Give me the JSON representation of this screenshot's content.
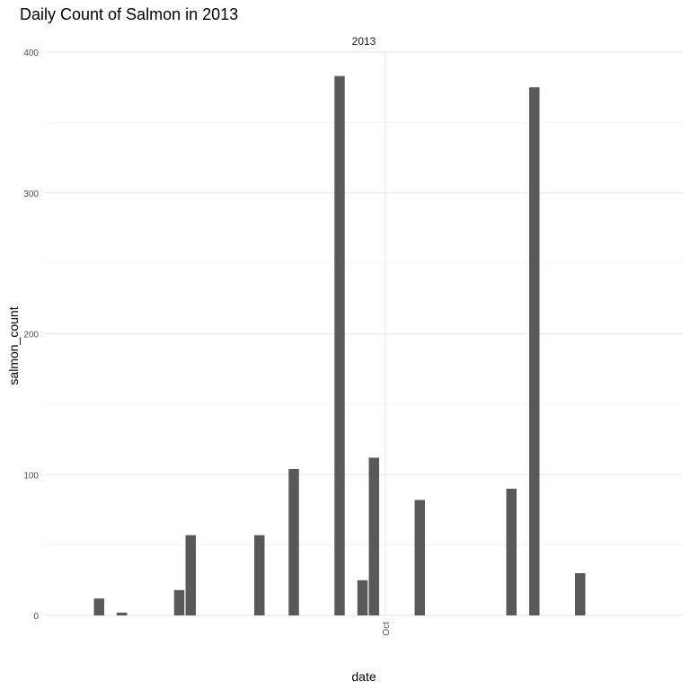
{
  "chart_data": {
    "type": "bar",
    "title": "Daily Count of Salmon in 2013",
    "facet_label": "2013",
    "xlabel": "date",
    "ylabel": "salmon_count",
    "x_tick_labels": [
      "Oct"
    ],
    "y_ticks": [
      0,
      100,
      200,
      300,
      400
    ],
    "ylim": [
      0,
      400
    ],
    "x_scale": "date",
    "xlim": [
      "2013-09-03",
      "2013-10-25"
    ],
    "x_tick_dates": [
      "2013-10-01"
    ],
    "grid": true,
    "bar_color": "#595959",
    "data": [
      {
        "date": "2013-09-06",
        "count": 12
      },
      {
        "date": "2013-09-08",
        "count": 2
      },
      {
        "date": "2013-09-13",
        "count": 18
      },
      {
        "date": "2013-09-14",
        "count": 57
      },
      {
        "date": "2013-09-20",
        "count": 57
      },
      {
        "date": "2013-09-23",
        "count": 104
      },
      {
        "date": "2013-09-27",
        "count": 383
      },
      {
        "date": "2013-09-29",
        "count": 25
      },
      {
        "date": "2013-09-30",
        "count": 112
      },
      {
        "date": "2013-10-04",
        "count": 82
      },
      {
        "date": "2013-10-12",
        "count": 90
      },
      {
        "date": "2013-10-14",
        "count": 375
      },
      {
        "date": "2013-10-18",
        "count": 30
      }
    ]
  }
}
